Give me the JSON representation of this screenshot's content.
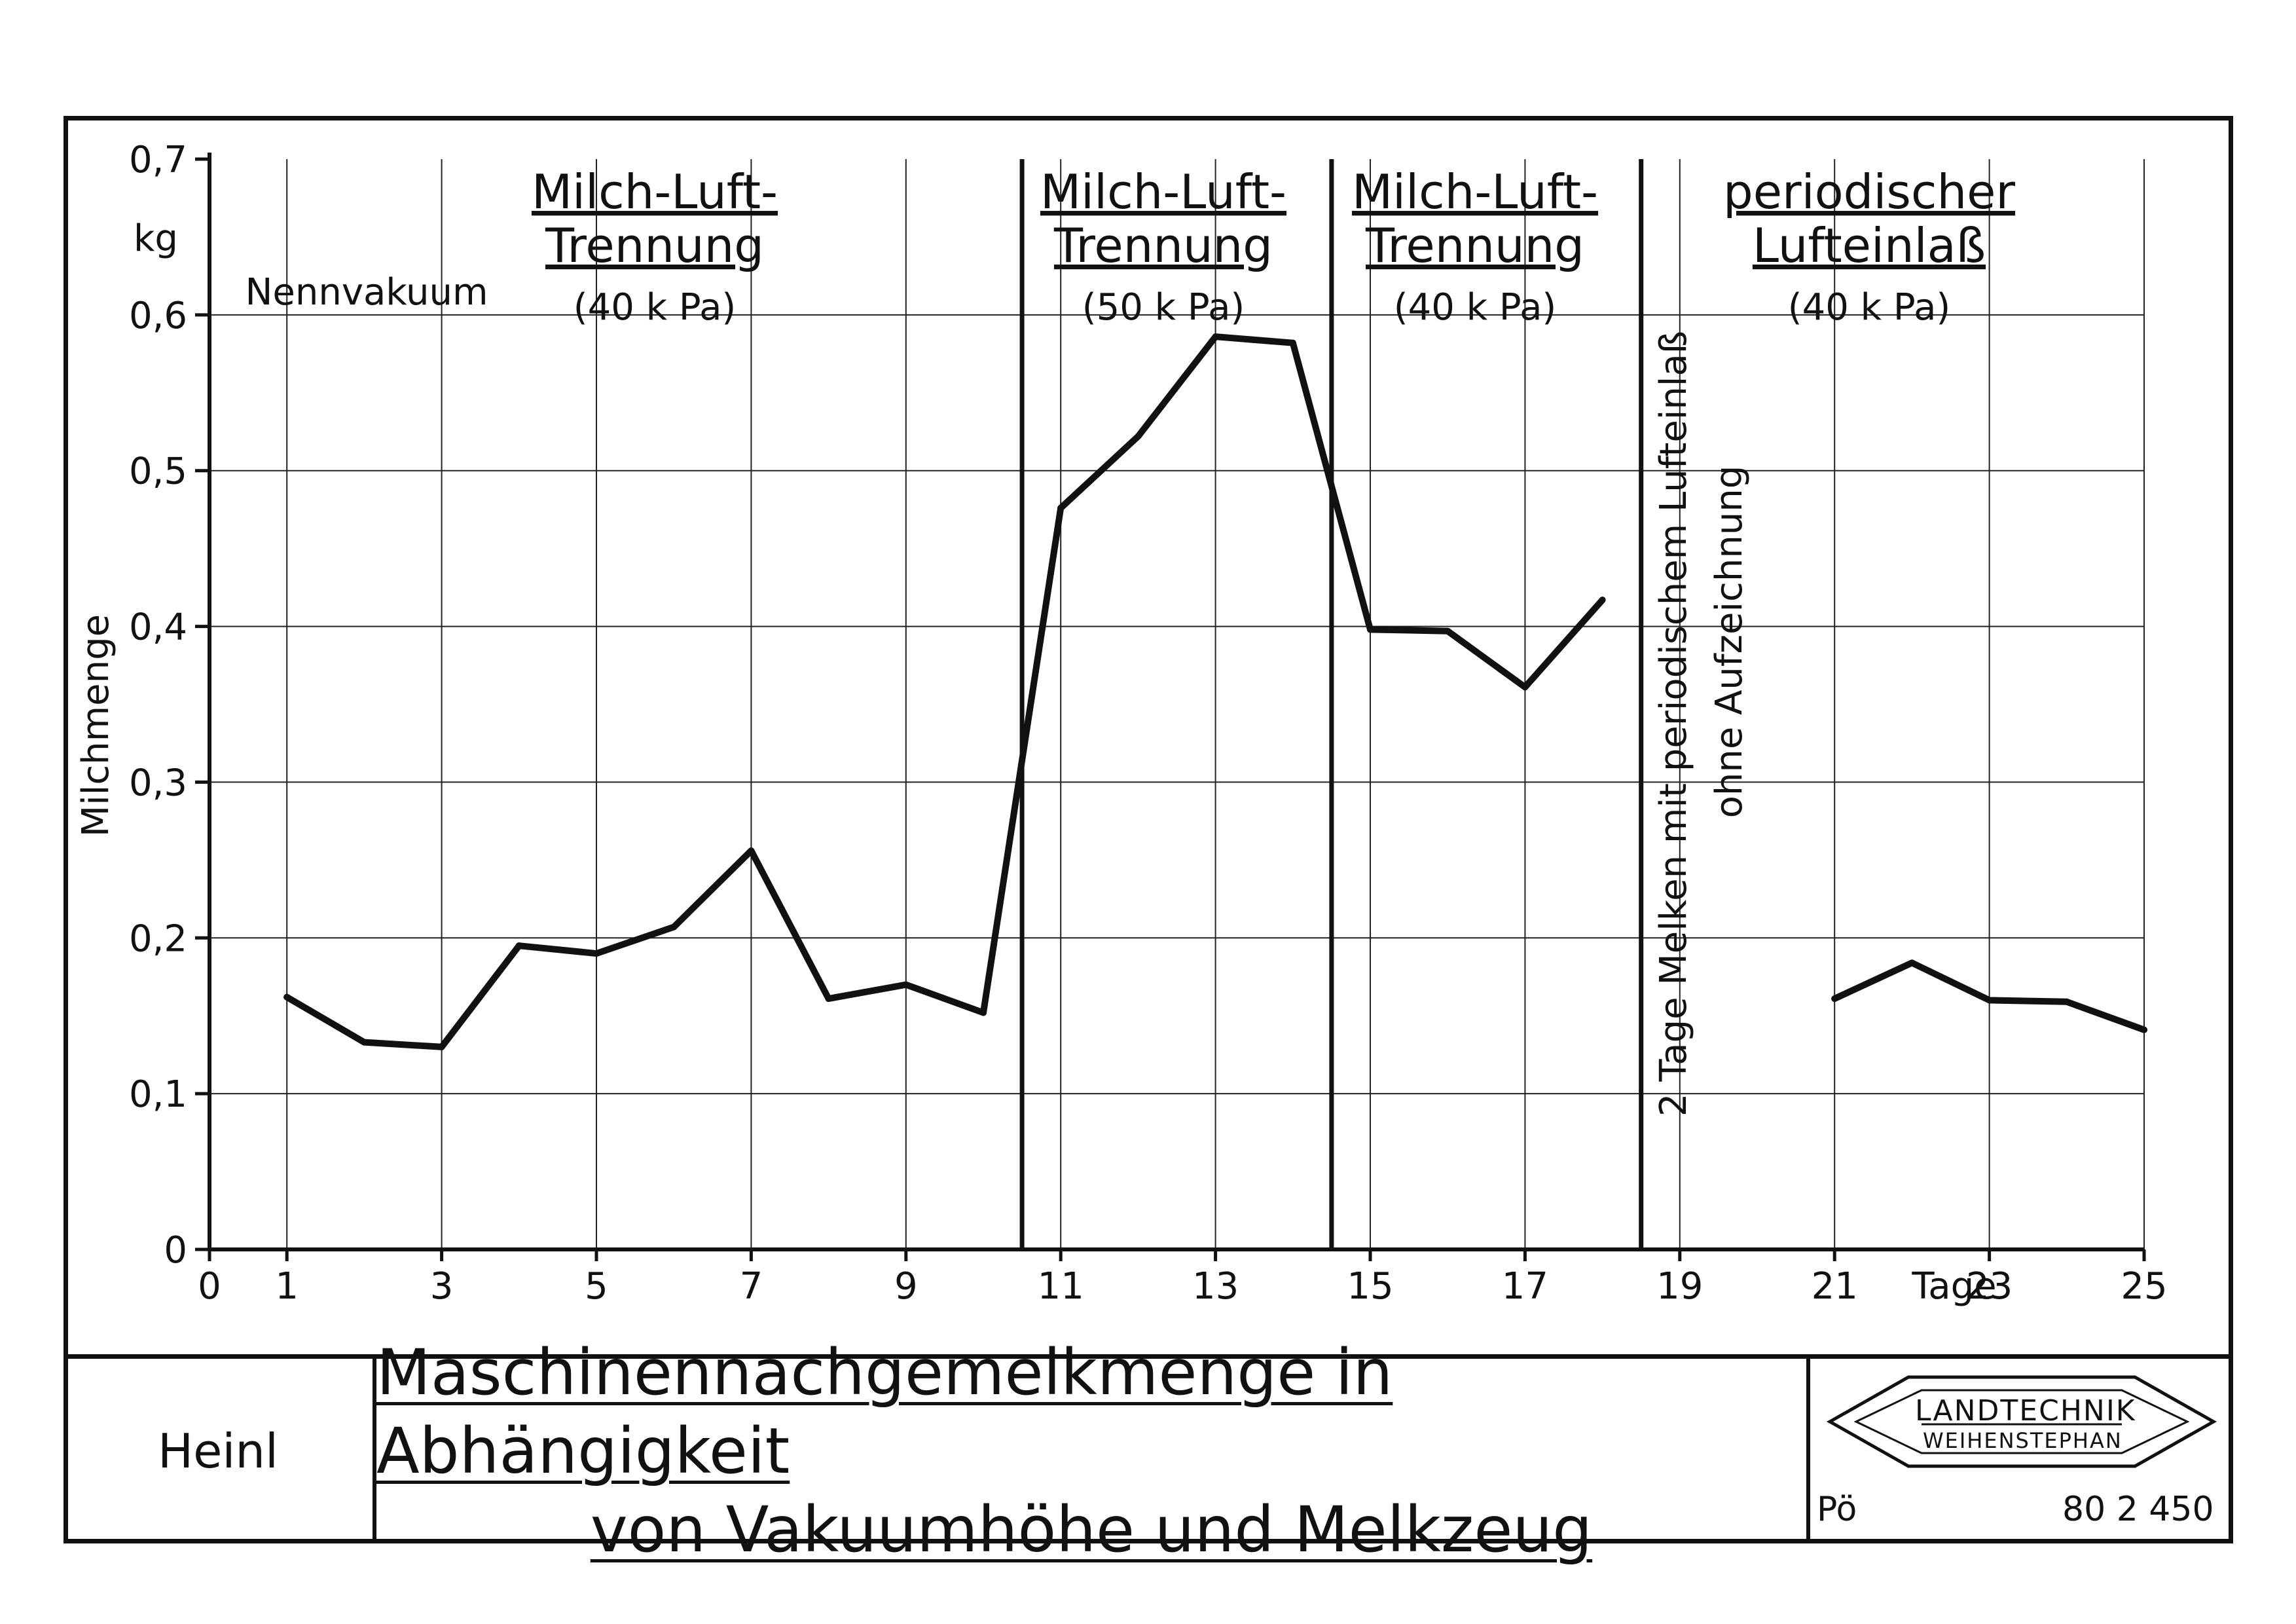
{
  "chart_data": {
    "type": "line",
    "ylabel": "Milchmenge",
    "yunit": "kg",
    "xunit": "Tage",
    "ylim": [
      0,
      0.7
    ],
    "xlim": [
      0,
      25
    ],
    "yticks": [
      "0",
      "0,1",
      "0,2",
      "0,3",
      "0,4",
      "0,5",
      "0,6",
      "0,7"
    ],
    "xticks": [
      "0",
      "1",
      "3",
      "5",
      "7",
      "9",
      "11",
      "13",
      "15",
      "17",
      "19",
      "21",
      "23",
      "25"
    ],
    "series": [
      {
        "x": [
          1,
          2,
          3,
          4,
          5,
          6,
          7,
          8,
          9,
          10,
          11,
          12,
          13,
          14,
          15,
          16,
          17,
          18
        ],
        "y": [
          0.162,
          0.133,
          0.13,
          0.195,
          0.19,
          0.207,
          0.256,
          0.161,
          0.17,
          0.152,
          0.476,
          0.522,
          0.586,
          0.582,
          0.398,
          0.397,
          0.361,
          0.417
        ]
      },
      {
        "x": [
          21,
          22,
          23,
          24,
          25
        ],
        "y": [
          0.161,
          0.184,
          0.16,
          0.159,
          0.141
        ]
      }
    ],
    "grid": true,
    "annotations": {
      "nennvakuum": "Nennvakuum",
      "section1": [
        "Milch-Luft-",
        "Trennung",
        "(40 k Pa)"
      ],
      "section2": [
        "Milch-Luft-",
        "Trennung",
        "(50 k Pa)"
      ],
      "section3": [
        "Milch-Luft-",
        "Trennung",
        "(40 k Pa)"
      ],
      "section4": [
        "periodischer",
        "Lufteinlaß",
        "(40 k Pa)"
      ],
      "vertical_note1": "2 Tage Melken mit periodischem Lufteinlaß",
      "vertical_note2": "ohne Aufzeichnung"
    }
  },
  "title_block": {
    "author": "Heinl",
    "title_line1": "Maschinennachgemelkmenge in Abhängigkeit",
    "title_line2": "von Vakuumhöhe und Melkzeug",
    "logo_line1": "LANDTECHNIK",
    "logo_line2": "WEIHENSTEPHAN",
    "code_left": "Pö",
    "code_right": "80 2 450"
  }
}
